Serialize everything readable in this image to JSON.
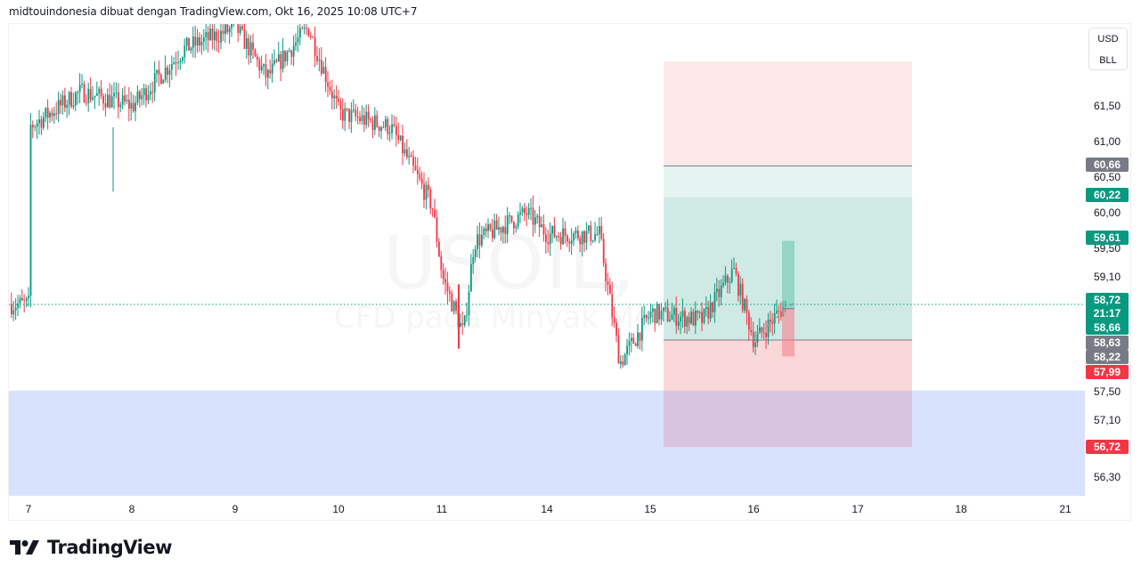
{
  "caption": "midtouindonesia dibuat dengan TradingView.com, Okt 16, 2025 10:08 UTC+7",
  "symbol_watermark": "USOIL, 30",
  "description_watermark": "CFD pada Minyak Mentah WTI",
  "unit": {
    "currency": "USD",
    "unit": "BLL"
  },
  "logo_text": "TradingView",
  "colors": {
    "up": "#089981",
    "down": "#f23645",
    "neutral_label": "#787b86",
    "target_zone": "#cfeae4",
    "target_zone_light": "#e4f4f1",
    "stop_zone": "#fad6d8",
    "stop_zone_light": "#fde9ea",
    "demand_zone": "#d8e2fd",
    "overlap_zone": "#d8c3e1"
  },
  "price_axis": {
    "ticks": [
      "61,50",
      "61,00",
      "60,50",
      "60,00",
      "59,50",
      "59,10",
      "57,50",
      "57,10",
      "56,30"
    ],
    "labels": [
      {
        "text": "60,66",
        "type": "neutral"
      },
      {
        "text": "60,22",
        "type": "up"
      },
      {
        "text": "59,61",
        "type": "up"
      },
      {
        "text": "58,72",
        "type": "up"
      },
      {
        "text": "21:17",
        "type": "up"
      },
      {
        "text": "58,66",
        "type": "up"
      },
      {
        "text": "58,63",
        "type": "neutral"
      },
      {
        "text": "58,22",
        "type": "neutral"
      },
      {
        "text": "57,99",
        "type": "down"
      },
      {
        "text": "56,72",
        "type": "down"
      }
    ]
  },
  "time_axis": {
    "labels": [
      "7",
      "8",
      "9",
      "10",
      "11",
      "14",
      "15",
      "16",
      "17",
      "18",
      "21"
    ]
  },
  "chart_data": {
    "type": "candlestick",
    "title": "USOIL, 30",
    "subtitle": "CFD pada Minyak Mentah WTI",
    "xlabel": "",
    "ylabel": "USD / BLL",
    "timeframe": "30m",
    "x_ticks": [
      "7",
      "8",
      "9",
      "10",
      "11",
      "14",
      "15",
      "16",
      "17",
      "18",
      "21"
    ],
    "y_ticks": [
      61.5,
      61.0,
      60.5,
      60.0,
      59.5,
      59.1,
      57.5,
      57.1,
      56.3
    ],
    "ylim": [
      56.0,
      63.0
    ],
    "last_price": 58.72,
    "countdown": "21:17",
    "approx_close_path": [
      {
        "x": "7",
        "price": 61.2
      },
      {
        "x": "7.5",
        "price": 61.7
      },
      {
        "x": "8",
        "price": 61.5
      },
      {
        "x": "8.5",
        "price": 62.3
      },
      {
        "x": "9",
        "price": 62.6
      },
      {
        "x": "9.3",
        "price": 61.9
      },
      {
        "x": "9.7",
        "price": 62.6
      },
      {
        "x": "10",
        "price": 61.4
      },
      {
        "x": "10.5",
        "price": 61.2
      },
      {
        "x": "10.9",
        "price": 60.1
      },
      {
        "x": "11",
        "price": 59.1
      },
      {
        "x": "11.2",
        "price": 58.3
      },
      {
        "x": "11.3",
        "price": 59.6
      },
      {
        "x": "11.8",
        "price": 60.0
      },
      {
        "x": "14",
        "price": 59.7
      },
      {
        "x": "14.5",
        "price": 59.7
      },
      {
        "x": "14.7",
        "price": 57.9
      },
      {
        "x": "15",
        "price": 58.6
      },
      {
        "x": "15.5",
        "price": 58.5
      },
      {
        "x": "15.8",
        "price": 59.2
      },
      {
        "x": "16",
        "price": 58.2
      },
      {
        "x": "16.3",
        "price": 58.72
      }
    ],
    "drawings": {
      "long_position": {
        "entry": 58.22,
        "target": 60.66,
        "stop": 56.72,
        "inner_target": 60.22
      },
      "price_range": {
        "from": 57.99,
        "to": 59.61
      },
      "demand_zone": {
        "from": 57.5,
        "to": 56.0
      }
    },
    "grid": false,
    "legend_position": "none"
  }
}
